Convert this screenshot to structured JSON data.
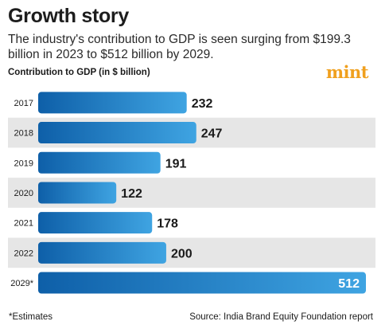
{
  "header": {
    "title": "Growth story",
    "subtitle": "The industry's contribution to GDP is seen surging from $199.3 billion in 2023 to $512 billion by 2029.",
    "logo": "mint"
  },
  "footer": {
    "footnote": "*Estimates",
    "source": "Source: India Brand Equity Foundation report"
  },
  "colors": {
    "bar_gradient_start": "#0e5fa8",
    "bar_gradient_end": "#3fa4e2",
    "row_alt_band": "#e6e6e6",
    "logo": "#f0a01e"
  },
  "chart_data": {
    "type": "bar",
    "orientation": "horizontal",
    "title": "Growth story",
    "ylabel": "Contribution to GDP (in $ billion)",
    "categories": [
      "2017",
      "2018",
      "2019",
      "2020",
      "2021",
      "2022",
      "2029*"
    ],
    "values": [
      232,
      247,
      191,
      122,
      178,
      200,
      512
    ],
    "data_labels": [
      "232",
      "247",
      "191",
      "122",
      "178",
      "200",
      "512"
    ],
    "grid": false,
    "legend": "none"
  }
}
